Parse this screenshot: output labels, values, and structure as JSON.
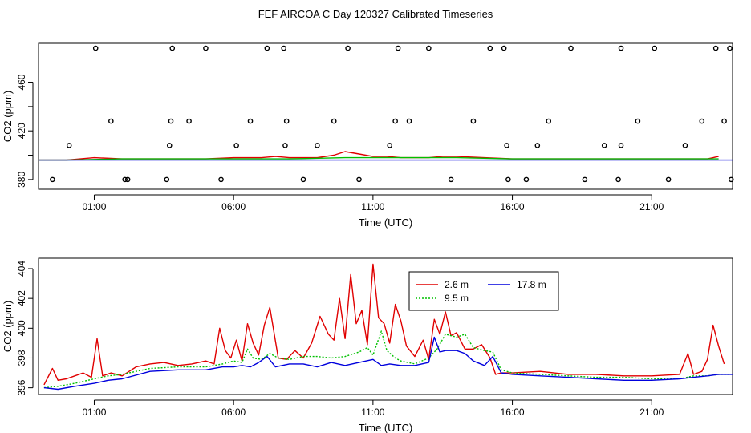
{
  "title": "FEF AIRCOA C  Day 120327  Calibrated Timeseries",
  "chart_data": [
    {
      "type": "line",
      "name": "top-panel",
      "xlabel": "Time (UTC)",
      "ylabel": "CO2 (ppm)",
      "xlim": [
        -1.0,
        23.9
      ],
      "ylim": [
        372,
        492
      ],
      "xticks": [
        {
          "v": 1,
          "label": "01:00"
        },
        {
          "v": 6,
          "label": "06:00"
        },
        {
          "v": 11,
          "label": "11:00"
        },
        {
          "v": 16,
          "label": "16:00"
        },
        {
          "v": 21,
          "label": "21:00"
        }
      ],
      "yticks": [
        {
          "v": 380,
          "label": "380"
        },
        {
          "v": 420,
          "label": "420"
        },
        {
          "v": 460,
          "label": "460"
        }
      ],
      "yticks_minor": [
        400,
        440
      ],
      "series": [
        {
          "name": "2.6 m",
          "color": "#e00000",
          "x": [
            -1.0,
            0,
            1.0,
            2,
            3,
            4,
            5,
            6,
            7,
            7.5,
            8,
            9,
            9.6,
            10,
            10.5,
            11,
            11.5,
            12,
            13,
            13.5,
            14,
            15,
            16,
            17,
            18,
            19,
            20,
            21,
            22,
            23,
            23.4
          ],
          "y": [
            396,
            396,
            398,
            397,
            397,
            397,
            397,
            398,
            398,
            399,
            398,
            398,
            400,
            403,
            401,
            399,
            399,
            398,
            398,
            399,
            399,
            398,
            397,
            397,
            397,
            397,
            397,
            397,
            397,
            397,
            399
          ]
        },
        {
          "name": "9.5 m",
          "color": "#00c000",
          "x": [
            -1.0,
            0,
            2,
            4,
            6,
            8,
            10,
            11,
            12,
            13.5,
            14,
            16,
            18,
            20,
            22,
            23.4
          ],
          "y": [
            396,
            396,
            397,
            397,
            397,
            397,
            398,
            398,
            398,
            398,
            398,
            397,
            397,
            397,
            397,
            397
          ]
        },
        {
          "name": "17.8 m",
          "color": "#0000dd",
          "x": [
            -1.0,
            23.9
          ],
          "y": [
            396,
            396
          ]
        }
      ],
      "outliers": {
        "x": [
          -0.5,
          1.05,
          2.1,
          3.8,
          5.0,
          7.2,
          7.8,
          10.1,
          11.9,
          13.0,
          15.2,
          15.7,
          18.1,
          19.9,
          21.1,
          23.3,
          23.8,
          0.1,
          1.6,
          2.2,
          3.7,
          4.4,
          6.1,
          6.6,
          7.85,
          9.0,
          9.6,
          10.5,
          11.6,
          12.3,
          13.8,
          14.6,
          15.8,
          16.5,
          17.3,
          18.6,
          19.3,
          19.8,
          20.5,
          21.6,
          22.2,
          23.6,
          3.6,
          3.75,
          5.55,
          7.9,
          8.5,
          11.8,
          15.85,
          16.9,
          19.9,
          22.8,
          23.85
        ],
        "y": [
          380,
          488,
          380,
          488,
          488,
          488,
          488,
          488,
          488,
          488,
          488,
          488,
          488,
          488,
          488,
          488,
          488,
          408,
          428,
          380,
          408,
          428,
          408,
          428,
          408,
          408,
          428,
          380,
          408,
          428,
          380,
          428,
          408,
          380,
          428,
          380,
          408,
          380,
          428,
          380,
          408,
          428,
          380,
          428,
          380,
          428,
          380,
          428,
          380,
          408,
          408,
          428,
          380
        ]
      }
    },
    {
      "type": "line",
      "name": "bottom-panel",
      "xlabel": "Time (UTC)",
      "ylabel": "CO2 (ppm)",
      "xlim": [
        -1.0,
        23.9
      ],
      "ylim": [
        395.55,
        404.7
      ],
      "xticks": [
        {
          "v": 1,
          "label": "01:00"
        },
        {
          "v": 6,
          "label": "06:00"
        },
        {
          "v": 11,
          "label": "11:00"
        },
        {
          "v": 16,
          "label": "16:00"
        },
        {
          "v": 21,
          "label": "21:00"
        }
      ],
      "yticks": [
        {
          "v": 396,
          "label": "396"
        },
        {
          "v": 398,
          "label": "398"
        },
        {
          "v": 400,
          "label": "400"
        },
        {
          "v": 402,
          "label": "402"
        },
        {
          "v": 404,
          "label": "404"
        }
      ],
      "legend": {
        "entries": [
          {
            "label": "2.6 m",
            "color": "#e00000",
            "dash": ""
          },
          {
            "label": "9.5 m",
            "color": "#00c000",
            "dash": "2,2"
          },
          {
            "label": "17.8 m",
            "color": "#0000dd",
            "dash": ""
          }
        ]
      },
      "series": [
        {
          "name": "2.6 m",
          "color": "#e00000",
          "dash": "",
          "x": [
            -0.8,
            -0.5,
            -0.3,
            0,
            0.3,
            0.6,
            0.9,
            1.1,
            1.3,
            1.6,
            2.0,
            2.5,
            3.0,
            3.5,
            4.0,
            4.5,
            5.0,
            5.3,
            5.5,
            5.7,
            5.9,
            6.1,
            6.3,
            6.5,
            6.7,
            6.9,
            7.1,
            7.3,
            7.6,
            7.9,
            8.2,
            8.5,
            8.8,
            9.1,
            9.4,
            9.6,
            9.8,
            10.0,
            10.2,
            10.4,
            10.6,
            10.8,
            11.0,
            11.2,
            11.4,
            11.6,
            11.8,
            12.0,
            12.2,
            12.5,
            12.8,
            13.0,
            13.2,
            13.4,
            13.6,
            13.8,
            14.0,
            14.3,
            14.6,
            14.9,
            15.2,
            15.4,
            15.6,
            16.0,
            17.0,
            18.0,
            19.0,
            20.0,
            21.0,
            22.0,
            22.3,
            22.5,
            22.8,
            23.0,
            23.2,
            23.4,
            23.6
          ],
          "y": [
            396.2,
            397.3,
            396.5,
            396.6,
            396.8,
            397.0,
            396.7,
            399.3,
            396.8,
            397.0,
            396.8,
            397.4,
            397.6,
            397.7,
            397.5,
            397.6,
            397.8,
            397.6,
            400.0,
            398.5,
            398.0,
            399.2,
            397.8,
            400.3,
            399.0,
            398.2,
            400.2,
            401.4,
            398.0,
            397.9,
            398.5,
            398.0,
            399.0,
            400.8,
            399.6,
            399.2,
            402.0,
            399.3,
            403.6,
            400.3,
            401.2,
            398.9,
            404.3,
            400.7,
            400.3,
            399.0,
            401.6,
            400.5,
            398.8,
            398.1,
            399.2,
            397.9,
            400.6,
            399.6,
            401.1,
            399.5,
            399.7,
            398.6,
            398.6,
            398.9,
            398.0,
            396.9,
            397.0,
            397.0,
            397.1,
            396.9,
            396.9,
            396.8,
            396.8,
            396.9,
            398.3,
            396.9,
            397.1,
            397.9,
            400.2,
            398.8,
            397.6
          ]
        },
        {
          "name": "9.5 m",
          "color": "#00c000",
          "dash": "2,2",
          "x": [
            -0.8,
            -0.3,
            0.3,
            1.0,
            1.5,
            2.0,
            3.0,
            4.0,
            5.0,
            5.6,
            6.0,
            6.3,
            6.5,
            6.7,
            7.0,
            7.3,
            7.6,
            8.0,
            8.5,
            9.0,
            9.5,
            10.0,
            10.5,
            10.8,
            11.0,
            11.3,
            11.5,
            11.8,
            12.0,
            12.5,
            13.0,
            13.3,
            13.6,
            14.0,
            14.3,
            14.6,
            15.0,
            15.3,
            15.6,
            16.0,
            17.0,
            18.0,
            19.0,
            20.0,
            21.0,
            22.0,
            22.5,
            23.0,
            23.4,
            23.8
          ],
          "y": [
            396.0,
            396.1,
            396.3,
            396.6,
            396.8,
            396.9,
            397.3,
            397.4,
            397.4,
            397.6,
            397.8,
            397.7,
            398.6,
            398.0,
            397.9,
            398.3,
            398.0,
            397.9,
            398.1,
            398.1,
            398.0,
            398.1,
            398.4,
            398.7,
            398.2,
            399.8,
            398.5,
            398.0,
            397.8,
            397.6,
            398.0,
            398.6,
            399.6,
            399.4,
            399.6,
            398.7,
            398.5,
            398.4,
            397.2,
            397.0,
            396.9,
            396.8,
            396.7,
            396.7,
            396.6,
            396.6,
            396.8,
            396.8,
            396.9,
            396.9
          ]
        },
        {
          "name": "17.8 m",
          "color": "#0000dd",
          "dash": "",
          "x": [
            -0.8,
            -0.3,
            0.3,
            1.0,
            1.5,
            2.0,
            3.0,
            4.0,
            5.0,
            5.6,
            6.0,
            6.3,
            6.6,
            6.9,
            7.2,
            7.5,
            8.0,
            8.5,
            9.0,
            9.5,
            10.0,
            10.5,
            11.0,
            11.3,
            11.6,
            12.0,
            12.5,
            13.0,
            13.2,
            13.4,
            13.6,
            14.0,
            14.3,
            14.6,
            15.0,
            15.3,
            15.6,
            16.0,
            17.0,
            18.0,
            19.0,
            20.0,
            21.0,
            22.0,
            22.5,
            23.0,
            23.4,
            23.9
          ],
          "y": [
            396.0,
            395.9,
            396.1,
            396.3,
            396.5,
            396.6,
            397.1,
            397.2,
            397.2,
            397.4,
            397.4,
            397.5,
            397.4,
            397.7,
            398.1,
            397.4,
            397.6,
            397.6,
            397.4,
            397.7,
            397.5,
            397.7,
            397.9,
            397.5,
            397.6,
            397.5,
            397.5,
            397.7,
            399.4,
            398.4,
            398.5,
            398.5,
            398.3,
            397.8,
            397.5,
            398.1,
            397.0,
            396.9,
            396.8,
            396.7,
            396.6,
            396.5,
            396.5,
            396.6,
            396.7,
            396.8,
            396.9,
            396.9
          ]
        }
      ]
    }
  ]
}
